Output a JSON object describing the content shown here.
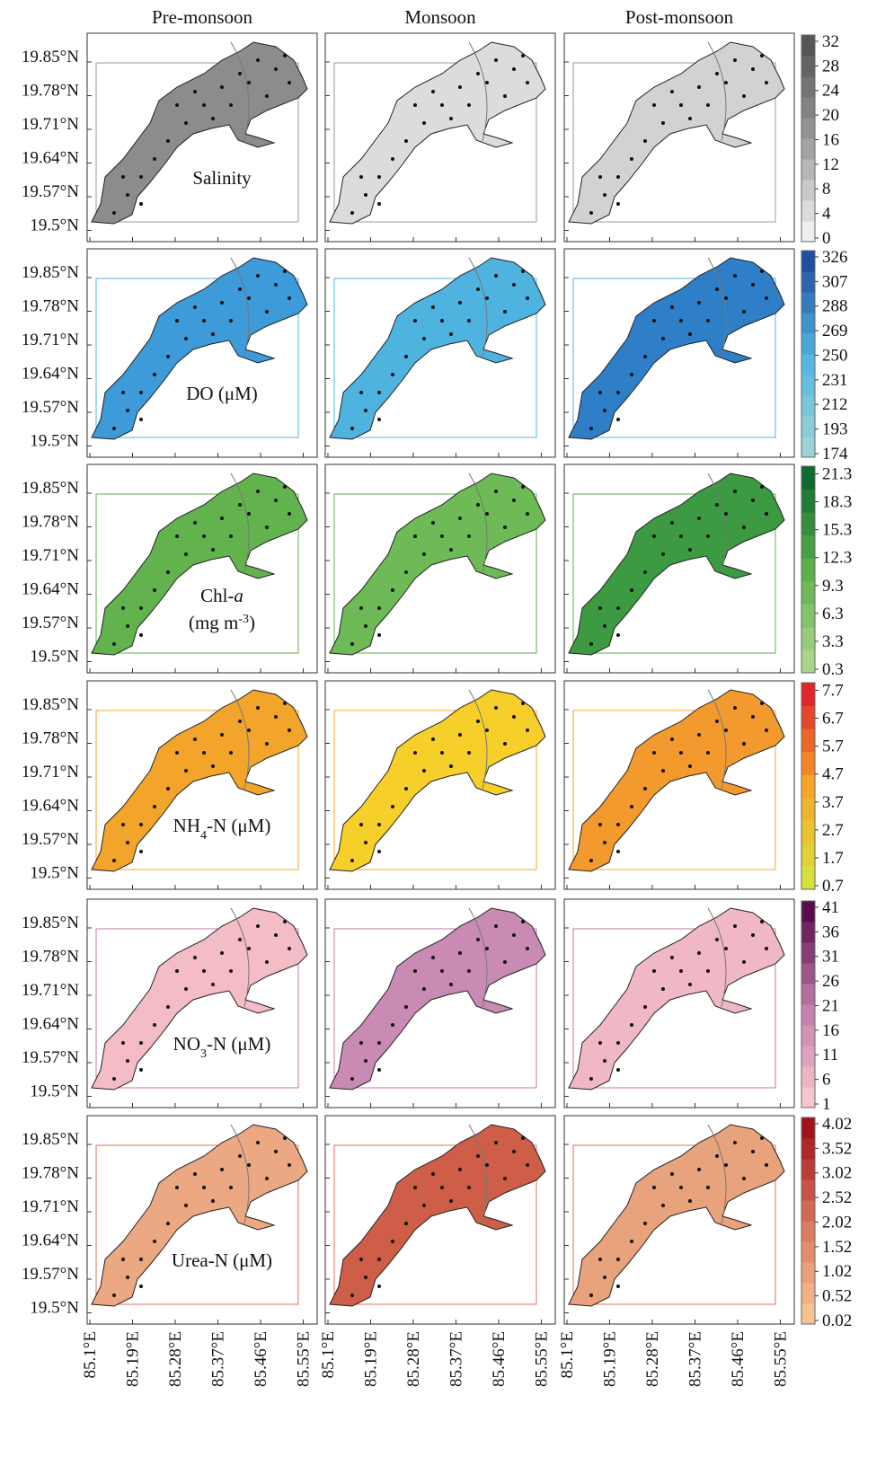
{
  "columns": [
    "Pre-monsoon",
    "Monsoon",
    "Post-monsoon"
  ],
  "y_labels": [
    "19.85°N",
    "19.78°N",
    "19.71°N",
    "19.64°N",
    "19.57°N",
    "19.5°N"
  ],
  "x_labels": [
    "85.1°E",
    "85.19°E",
    "85.28°E",
    "85.37°E",
    "85.46°E",
    "85.55°E"
  ],
  "rows": [
    {
      "label": [
        [
          {
            "text": "Salinity"
          }
        ]
      ],
      "ticks": [
        0,
        4,
        8,
        12,
        16,
        20,
        24,
        28,
        32
      ],
      "colors": [
        "#eeeeee",
        "#9a9a9a",
        "#555555"
      ],
      "panel_fills": [
        "#8c8c8c",
        "#dcdcdc",
        "#d2d2d2"
      ]
    },
    {
      "label": [
        [
          {
            "text": "DO ("
          },
          {
            "text": "μ",
            "style": "n"
          },
          {
            "text": "M)"
          }
        ]
      ],
      "ticks": [
        174,
        193,
        212,
        231,
        250,
        269,
        288,
        307,
        326
      ],
      "colors": [
        "#9bd3d8",
        "#4fb3e0",
        "#1f4fa0"
      ],
      "panel_fills": [
        "#3c9bd8",
        "#4fb3e0",
        "#2f7fc8"
      ]
    },
    {
      "label": [
        [
          {
            "text": "Chl-"
          },
          {
            "text": "a",
            "style": "i"
          }
        ],
        [
          {
            "text": "(mg m"
          },
          {
            "text": "-3",
            "style": "sup"
          },
          {
            "text": ")"
          }
        ]
      ],
      "ticks": [
        0.3,
        3.3,
        6.3,
        9.3,
        12.3,
        15.3,
        18.3,
        21.3
      ],
      "colors": [
        "#a9d58a",
        "#5cb04a",
        "#0e6b2e"
      ],
      "panel_fills": [
        "#62b34e",
        "#6dba56",
        "#3c9a42"
      ]
    },
    {
      "label": [
        [
          {
            "text": "NH"
          },
          {
            "text": "4",
            "style": "sub"
          },
          {
            "text": "-N (μM)"
          }
        ]
      ],
      "ticks": [
        0.7,
        1.7,
        2.7,
        3.7,
        4.7,
        5.7,
        6.7,
        7.7
      ],
      "colors": [
        "#d8e03c",
        "#f7a528",
        "#e0262a"
      ],
      "panel_fills": [
        "#f2a52a",
        "#f6cf2a",
        "#f39a2e"
      ]
    },
    {
      "label": [
        [
          {
            "text": "NO"
          },
          {
            "text": "3",
            "style": "sub"
          },
          {
            "text": "-N (μM)"
          }
        ]
      ],
      "ticks": [
        1,
        6,
        11,
        16,
        21,
        26,
        31,
        36,
        41
      ],
      "colors": [
        "#f7c6cc",
        "#c07aaa",
        "#5a0c4e"
      ],
      "panel_fills": [
        "#f4bcc4",
        "#c98ab4",
        "#efb8c4"
      ]
    },
    {
      "label": [
        [
          {
            "text": "Urea-N (μM)"
          }
        ]
      ],
      "ticks": [
        0.02,
        0.52,
        1.02,
        1.52,
        2.02,
        2.52,
        3.02,
        3.52,
        4.02
      ],
      "colors": [
        "#f5c391",
        "#d9735a",
        "#a3121a"
      ],
      "panel_fills": [
        "#eba882",
        "#cf5e48",
        "#e8a27c"
      ]
    }
  ]
}
